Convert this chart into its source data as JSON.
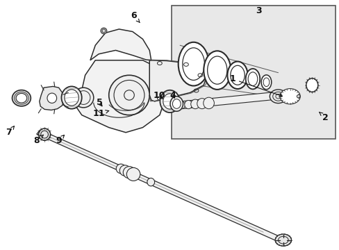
{
  "background_color": "#ffffff",
  "line_color": "#2a2a2a",
  "inset_bg": "#e8e8e8",
  "figsize": [
    4.89,
    3.6
  ],
  "dpi": 100,
  "labels": {
    "1": [
      0.685,
      0.685,
      0.7,
      0.73
    ],
    "2": [
      0.96,
      0.53,
      0.945,
      0.55
    ],
    "3": [
      0.76,
      0.04,
      0.76,
      0.04
    ],
    "4": [
      0.508,
      0.62,
      0.495,
      0.595
    ],
    "5": [
      0.295,
      0.59,
      0.315,
      0.57
    ],
    "6": [
      0.398,
      0.075,
      0.415,
      0.095
    ],
    "7": [
      0.028,
      0.47,
      0.045,
      0.49
    ],
    "8": [
      0.11,
      0.435,
      0.125,
      0.46
    ],
    "9": [
      0.175,
      0.435,
      0.188,
      0.458
    ],
    "10": [
      0.47,
      0.615,
      0.48,
      0.592
    ],
    "11": [
      0.29,
      0.54,
      0.318,
      0.555
    ]
  }
}
